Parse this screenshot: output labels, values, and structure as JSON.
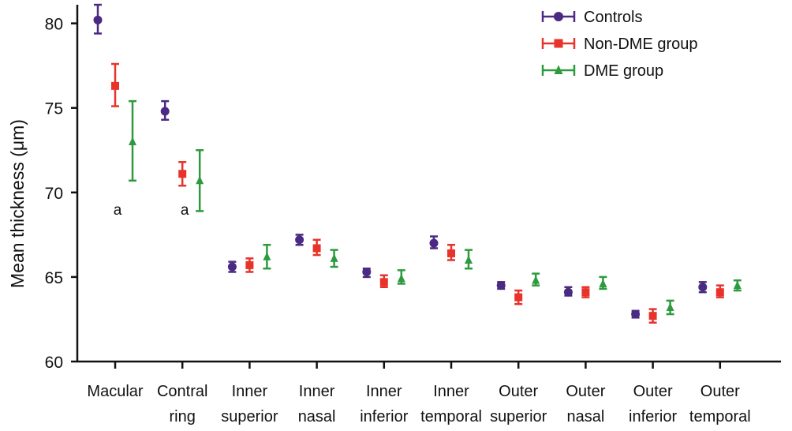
{
  "chart_data": {
    "type": "scatter",
    "ylabel": "Mean thickness (μm)",
    "ylim": [
      60,
      81.5
    ],
    "yticks": [
      60,
      65,
      70,
      75,
      80
    ],
    "categories": [
      [
        "Macular",
        ""
      ],
      [
        "Contral",
        "ring"
      ],
      [
        "Inner",
        "superior"
      ],
      [
        "Inner",
        "nasal"
      ],
      [
        "Inner",
        "inferior"
      ],
      [
        "Inner",
        "temporal"
      ],
      [
        "Outer",
        "superior"
      ],
      [
        "Outer",
        "nasal"
      ],
      [
        "Outer",
        "inferior"
      ],
      [
        "Outer",
        "temporal"
      ]
    ],
    "series": [
      {
        "name": "Controls",
        "color": "#4b2a83",
        "marker": "circle",
        "values": [
          80.2,
          74.8,
          65.6,
          67.2,
          65.3,
          67.0,
          64.5,
          64.1,
          62.8,
          64.4
        ],
        "lower": [
          79.4,
          74.3,
          65.3,
          66.9,
          65.0,
          66.7,
          64.3,
          63.9,
          62.6,
          64.1
        ],
        "upper": [
          81.1,
          75.4,
          65.9,
          67.5,
          65.5,
          67.4,
          64.7,
          64.4,
          63.0,
          64.7
        ]
      },
      {
        "name": "Non-DME group",
        "color": "#e8332a",
        "marker": "square",
        "values": [
          76.3,
          71.1,
          65.7,
          66.7,
          64.7,
          66.4,
          63.8,
          64.1,
          62.7,
          64.1
        ],
        "lower": [
          75.1,
          70.4,
          65.3,
          66.3,
          64.4,
          66.0,
          63.4,
          63.8,
          62.3,
          63.8
        ],
        "upper": [
          77.6,
          71.8,
          66.1,
          67.2,
          65.1,
          66.9,
          64.2,
          64.4,
          63.1,
          64.5
        ]
      },
      {
        "name": "DME group",
        "color": "#2e9a3f",
        "marker": "triangle",
        "values": [
          73.0,
          70.7,
          66.2,
          66.1,
          64.9,
          66.0,
          64.8,
          64.6,
          63.2,
          64.5
        ],
        "lower": [
          70.7,
          68.9,
          65.5,
          65.6,
          64.6,
          65.5,
          64.5,
          64.3,
          62.8,
          64.2
        ],
        "upper": [
          75.4,
          72.5,
          66.9,
          66.6,
          65.4,
          66.6,
          65.2,
          65.0,
          63.6,
          64.8
        ]
      }
    ],
    "annotations": [
      {
        "category_index": 0,
        "text": "a"
      },
      {
        "category_index": 1,
        "text": "a"
      }
    ],
    "legend": "top-right",
    "grid": false
  }
}
